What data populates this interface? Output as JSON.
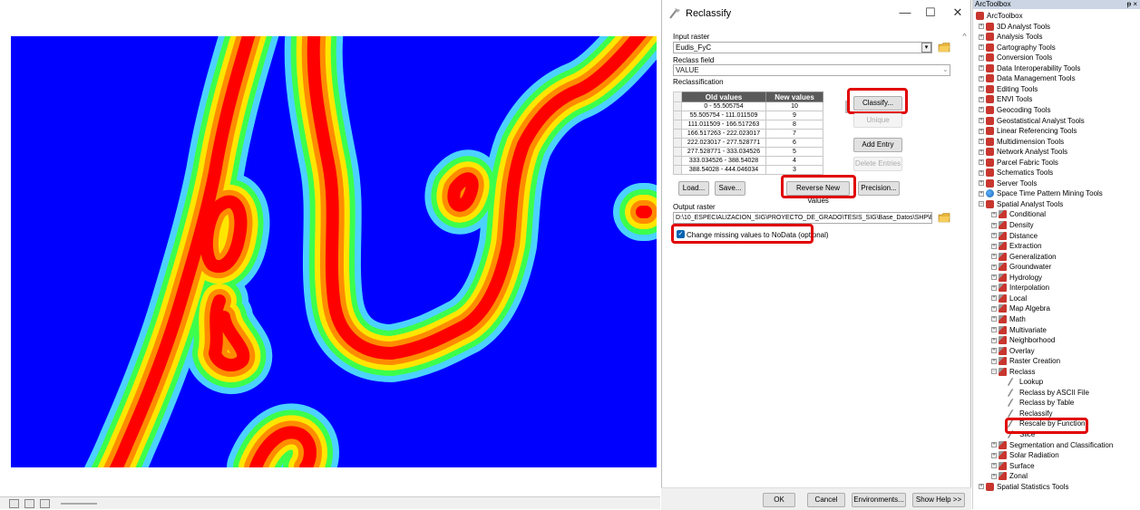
{
  "colors": {
    "map_background": "#0000ff",
    "ring_red": "#ff0000",
    "ring_orange": "#ff8c00",
    "ring_yellow": "#ffe600",
    "ring_green": "#3cff4c",
    "ring_cyan": "#4cd2ff",
    "highlight": "#e00000",
    "table_header": "#5a5a5a"
  },
  "dialog": {
    "title": "Reclassify",
    "input_raster_label": "Input raster",
    "input_raster_value": "Eudis_FyC",
    "reclass_field_label": "Reclass field",
    "reclass_field_value": "VALUE",
    "reclassification_label": "Reclassification",
    "table": {
      "headers": [
        "Old values",
        "New values"
      ],
      "rows": [
        {
          "old": "0 - 55.505754",
          "new": "10"
        },
        {
          "old": "55.505754 - 111.011509",
          "new": "9"
        },
        {
          "old": "111.011509 - 166.517263",
          "new": "8"
        },
        {
          "old": "166.517263 - 222.023017",
          "new": "7"
        },
        {
          "old": "222.023017 - 277.528771",
          "new": "6"
        },
        {
          "old": "277.528771 - 333.034526",
          "new": "5"
        },
        {
          "old": "333.034526 - 388.54028",
          "new": "4"
        },
        {
          "old": "388.54028 - 444.046034",
          "new": "3"
        }
      ]
    },
    "buttons": {
      "classify": "Classify...",
      "unique": "Unique",
      "add_entry": "Add Entry",
      "delete_entries": "Delete Entries",
      "load": "Load...",
      "save": "Save...",
      "reverse": "Reverse New Values",
      "precision": "Precision...",
      "ok": "OK",
      "cancel": "Cancel",
      "environments": "Environments...",
      "show_help": "Show Help >>"
    },
    "output_raster_label": "Output raster",
    "output_raster_value": "D:\\10_ESPECIALIZACION_SIG\\PROYECTO_DE_GRADO\\TESIS_SIG\\Base_Datos\\SHP\\Estr",
    "change_missing_label": "Change missing values to NoData (optional)",
    "change_missing_checked": true
  },
  "toolbox": {
    "title": "ArcToolbox",
    "pin": "ᵽ ×",
    "root": "ArcToolbox",
    "top_items": [
      "3D Analyst Tools",
      "Analysis Tools",
      "Cartography Tools",
      "Conversion Tools",
      "Data Interoperability Tools",
      "Data Management Tools",
      "Editing Tools",
      "ENVI Tools",
      "Geocoding Tools",
      "Geostatistical Analyst Tools",
      "Linear Referencing Tools",
      "Multidimension Tools",
      "Network Analyst Tools",
      "Parcel Fabric Tools",
      "Schematics Tools",
      "Server Tools",
      "Space Time Pattern Mining Tools"
    ],
    "spatial_analyst": "Spatial Analyst Tools",
    "sa_items_before": [
      "Conditional",
      "Density",
      "Distance",
      "Extraction",
      "Generalization",
      "Groundwater",
      "Hydrology",
      "Interpolation",
      "Local",
      "Map Algebra",
      "Math",
      "Multivariate",
      "Neighborhood",
      "Overlay",
      "Raster Creation"
    ],
    "reclass": "Reclass",
    "reclass_tools": [
      "Lookup",
      "Reclass by ASCII File",
      "Reclass by Table",
      "Reclassify",
      "Rescale by Function",
      "Slice"
    ],
    "sa_items_after": [
      "Segmentation and Classification",
      "Solar Radiation",
      "Surface",
      "Zonal"
    ],
    "last_item": "Spatial Statistics Tools"
  }
}
